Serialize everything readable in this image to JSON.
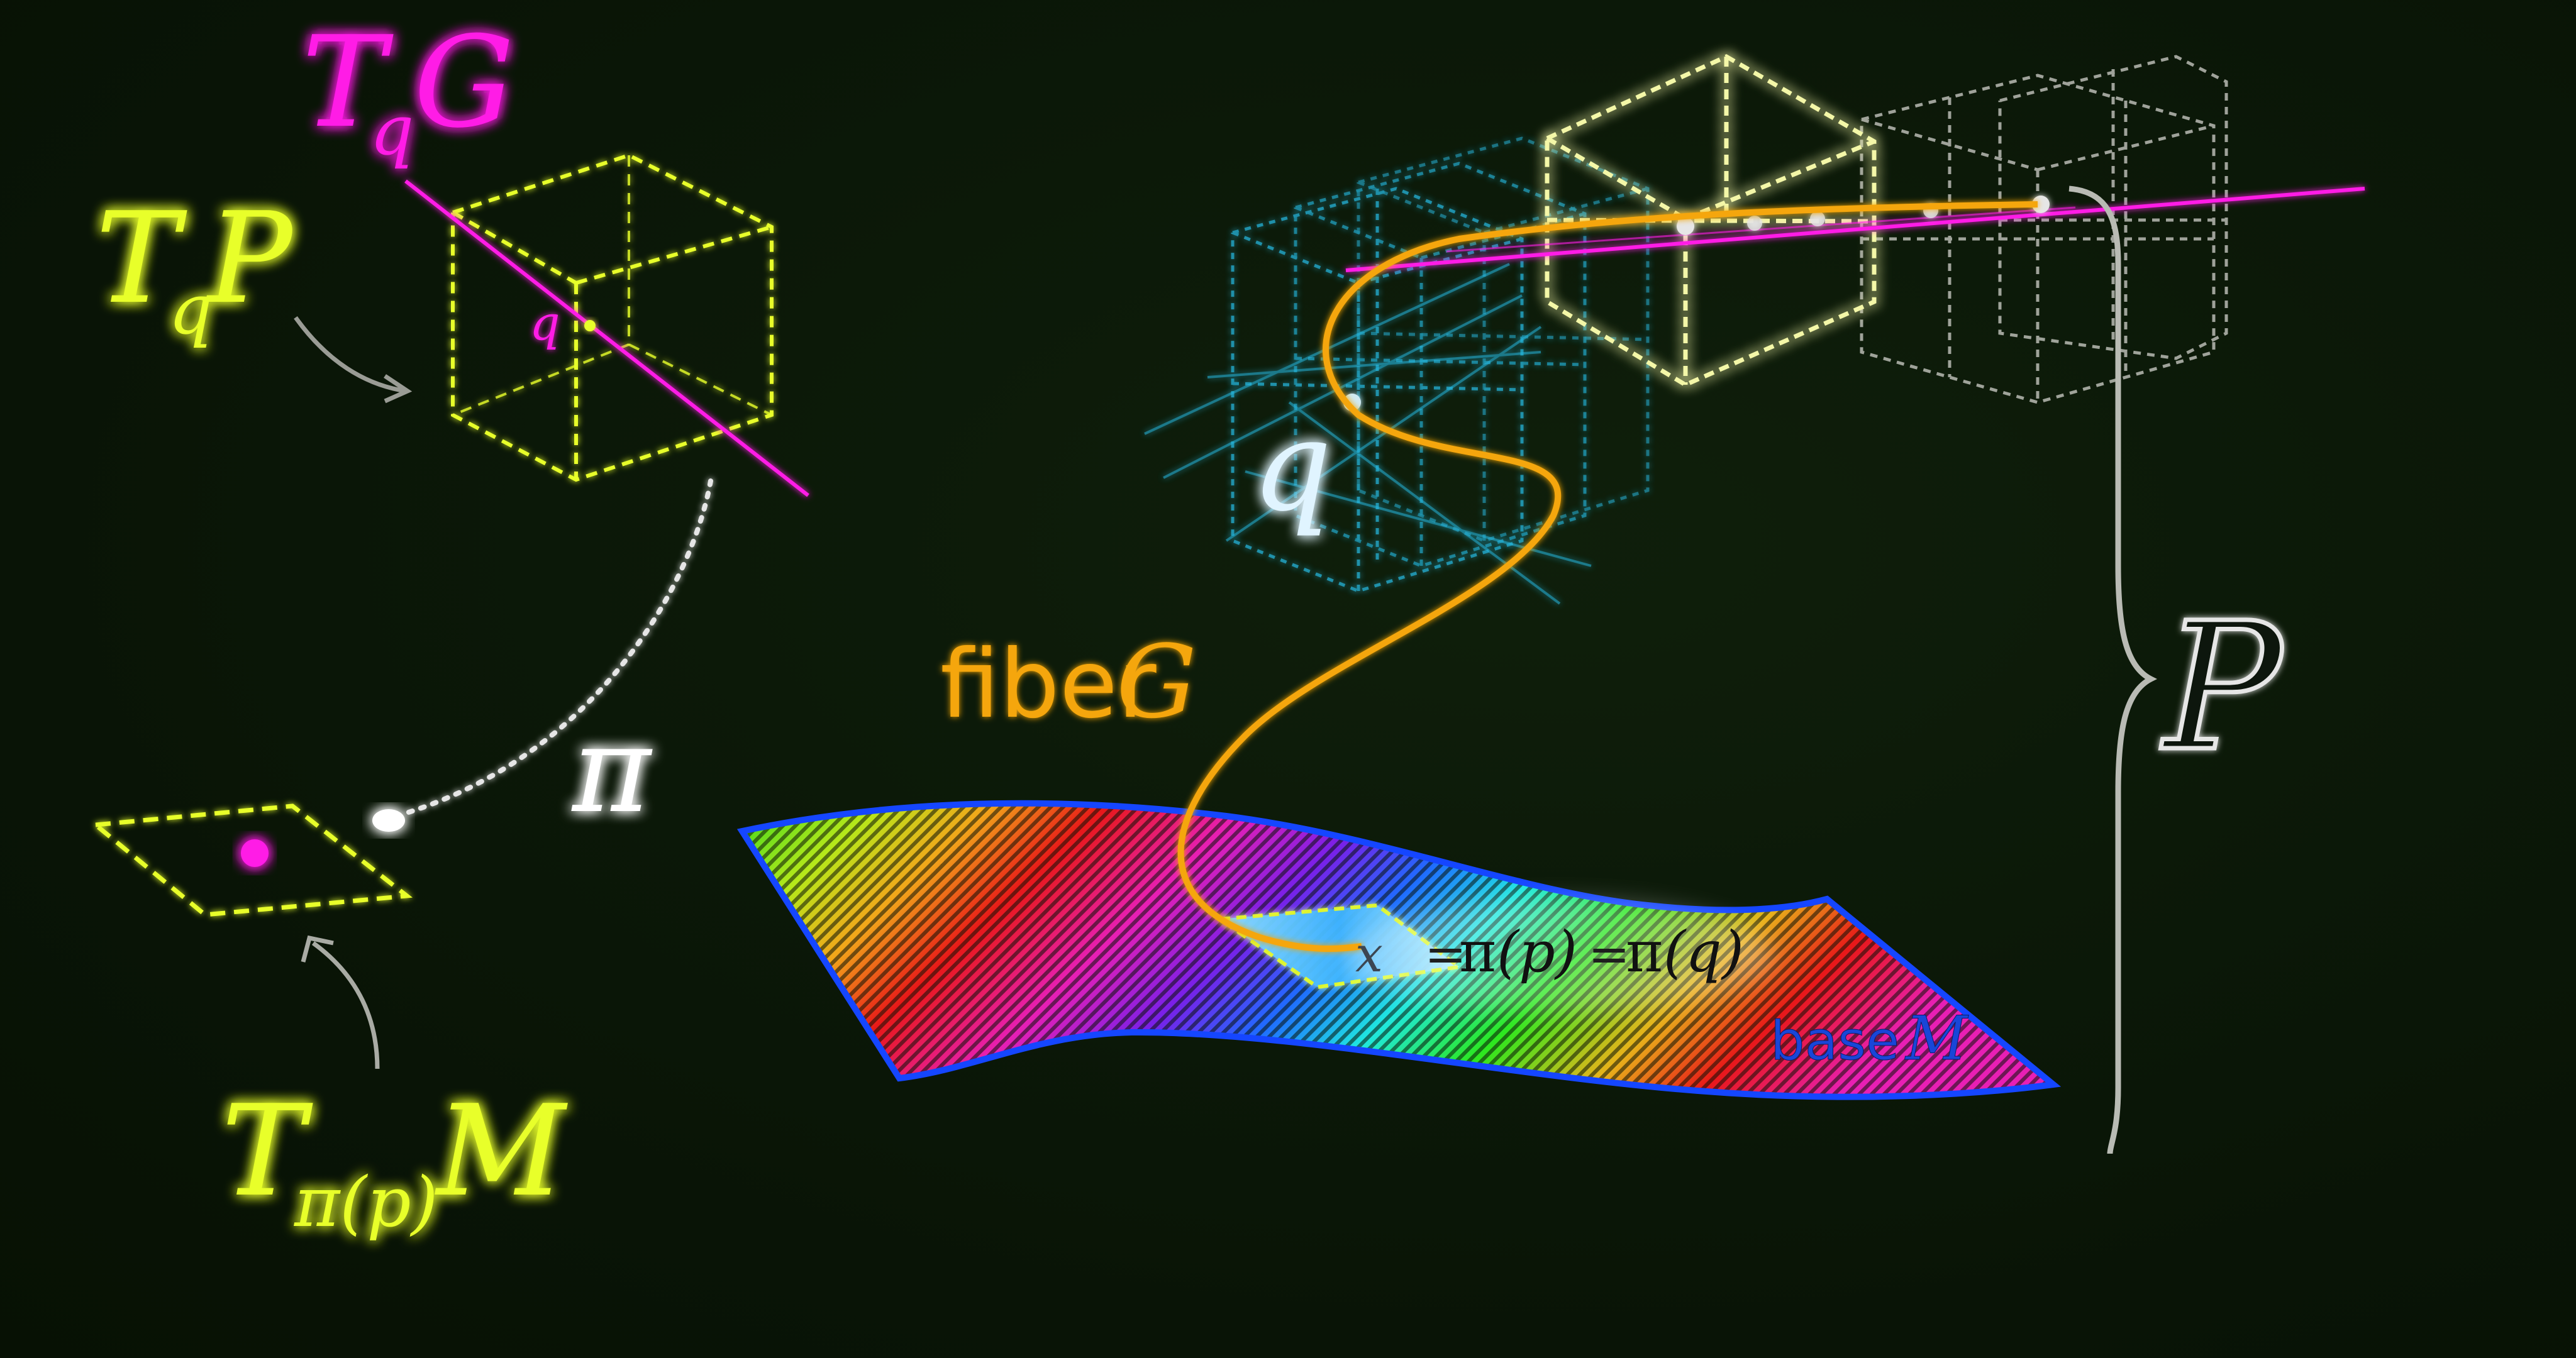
{
  "colors": {
    "background": "#0b1608",
    "neon_yellow": "#e8ff2a",
    "neon_magenta": "#ff1fe6",
    "neon_cyan": "#25b8e0",
    "pale_cube": "#f4f7a8",
    "grey": "#b9bbb4",
    "fiber_orange": "#f5a60f",
    "base_blue": "#1546ff",
    "white": "#ffffff"
  },
  "labels": {
    "tqg_T": "T",
    "tqg_sub": "q",
    "tqg_G": "G",
    "tqp_T": "T",
    "tqp_sub": "q",
    "tqp_P": "P",
    "point_q_small": "q",
    "pi_symbol": "π",
    "tm_T": "T",
    "tm_sub": "π(p)",
    "tm_M": "M",
    "fiber_word": "fiber",
    "fiber_G": "G",
    "big_q": "q",
    "big_P": "P",
    "formula": {
      "x": "x",
      "eq1": "=",
      "pi1": "π",
      "p": "(p)",
      "eq2": "=",
      "pi2": "π",
      "q": "(q)"
    },
    "base_word": "base",
    "base_M": "M"
  }
}
